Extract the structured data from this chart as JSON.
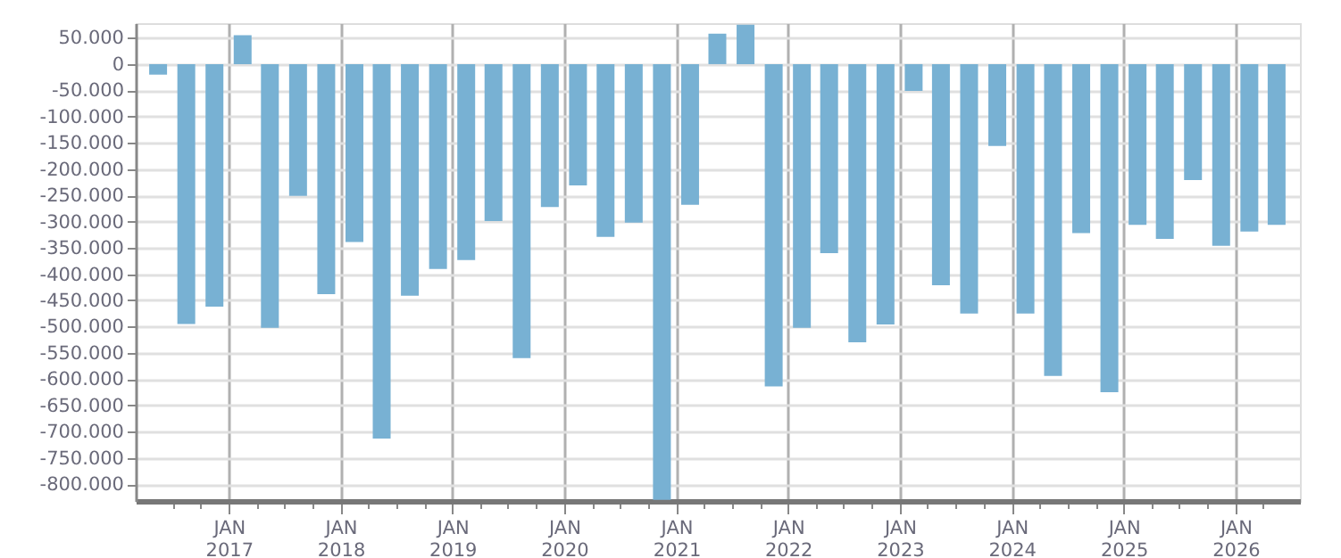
{
  "chart_data": {
    "type": "bar",
    "color": "#78b1d3",
    "grid": true,
    "x": [
      "2016-05-15",
      "2016-08-15",
      "2016-11-15",
      "2017-02-15",
      "2017-05-15",
      "2017-08-15",
      "2017-11-15",
      "2018-02-15",
      "2018-05-15",
      "2018-08-15",
      "2018-11-15",
      "2019-02-15",
      "2019-05-15",
      "2019-08-15",
      "2019-11-15",
      "2020-02-15",
      "2020-05-15",
      "2020-08-15",
      "2020-11-15",
      "2021-02-15",
      "2021-05-15",
      "2021-08-15",
      "2021-11-15",
      "2022-02-15",
      "2022-05-15",
      "2022-08-15",
      "2022-11-15",
      "2023-02-15",
      "2023-05-15",
      "2023-08-15",
      "2023-11-15",
      "2024-02-15",
      "2024-05-15",
      "2024-08-15",
      "2024-11-15",
      "2025-02-15",
      "2025-05-15",
      "2025-08-15",
      "2025-11-15",
      "2026-02-15",
      "2026-05-15"
    ],
    "values": [
      -20000,
      -495000,
      -462000,
      55000,
      -502000,
      -251000,
      -438000,
      -339000,
      -713000,
      -441000,
      -390000,
      -373000,
      -299000,
      -560000,
      -272000,
      -231000,
      -329000,
      -302000,
      -830000,
      -268000,
      58000,
      75000,
      -614000,
      -502000,
      -360000,
      -530000,
      -496000,
      -51000,
      -421000,
      -475000,
      -156000,
      -475000,
      -594000,
      -322000,
      -625000,
      -306000,
      -333000,
      -221000,
      -346000,
      -319000,
      -306000
    ],
    "xlim": [
      "2016-04-01",
      "2026-07-01"
    ],
    "xticks": [
      {
        "value": "2016-07-01",
        "label": null
      },
      {
        "value": "2016-10-01",
        "label": null
      },
      {
        "value": "2017-01-01",
        "label": "JAN\n2017"
      },
      {
        "value": "2017-04-01",
        "label": null
      },
      {
        "value": "2017-07-01",
        "label": null
      },
      {
        "value": "2017-10-01",
        "label": null
      },
      {
        "value": "2018-01-01",
        "label": "JAN\n2018"
      },
      {
        "value": "2018-04-01",
        "label": null
      },
      {
        "value": "2018-07-01",
        "label": null
      },
      {
        "value": "2018-10-01",
        "label": null
      },
      {
        "value": "2019-01-01",
        "label": "JAN\n2019"
      },
      {
        "value": "2019-04-01",
        "label": null
      },
      {
        "value": "2019-07-01",
        "label": null
      },
      {
        "value": "2019-10-01",
        "label": null
      },
      {
        "value": "2020-01-01",
        "label": "JAN\n2020"
      },
      {
        "value": "2020-04-01",
        "label": null
      },
      {
        "value": "2020-07-01",
        "label": null
      },
      {
        "value": "2020-10-01",
        "label": null
      },
      {
        "value": "2021-01-01",
        "label": "JAN\n2021"
      },
      {
        "value": "2021-04-01",
        "label": null
      },
      {
        "value": "2021-07-01",
        "label": null
      },
      {
        "value": "2021-10-01",
        "label": null
      },
      {
        "value": "2022-01-01",
        "label": "JAN\n2022"
      },
      {
        "value": "2022-04-01",
        "label": null
      },
      {
        "value": "2022-07-01",
        "label": null
      },
      {
        "value": "2022-10-01",
        "label": null
      },
      {
        "value": "2023-01-01",
        "label": "JAN\n2023"
      },
      {
        "value": "2023-04-01",
        "label": null
      },
      {
        "value": "2023-07-01",
        "label": null
      },
      {
        "value": "2023-10-01",
        "label": null
      },
      {
        "value": "2024-01-01",
        "label": "JAN\n2024"
      },
      {
        "value": "2024-04-01",
        "label": null
      },
      {
        "value": "2024-07-01",
        "label": null
      },
      {
        "value": "2024-10-01",
        "label": null
      },
      {
        "value": "2025-01-01",
        "label": "JAN\n2025"
      },
      {
        "value": "2025-04-01",
        "label": null
      },
      {
        "value": "2025-07-01",
        "label": null
      },
      {
        "value": "2025-10-01",
        "label": null
      },
      {
        "value": "2026-01-01",
        "label": "JAN\n2026"
      },
      {
        "value": "2026-04-01",
        "label": null
      }
    ],
    "ylim": [
      -832000,
      78000
    ],
    "yticks": [
      {
        "value": 50000,
        "label": "50.000"
      },
      {
        "value": 0,
        "label": "0"
      },
      {
        "value": -50000,
        "label": "-50.000"
      },
      {
        "value": -100000,
        "label": "-100.000"
      },
      {
        "value": -150000,
        "label": "-150.000"
      },
      {
        "value": -200000,
        "label": "-200.000"
      },
      {
        "value": -250000,
        "label": "-250.000"
      },
      {
        "value": -300000,
        "label": "-300.000"
      },
      {
        "value": -350000,
        "label": "-350.000"
      },
      {
        "value": -400000,
        "label": "-400.000"
      },
      {
        "value": -450000,
        "label": "-450.000"
      },
      {
        "value": -500000,
        "label": "-500.000"
      },
      {
        "value": -550000,
        "label": "-550.000"
      },
      {
        "value": -600000,
        "label": "-600.000"
      },
      {
        "value": -650000,
        "label": "-650.000"
      },
      {
        "value": -700000,
        "label": "-700.000"
      },
      {
        "value": -750000,
        "label": "-750.000"
      },
      {
        "value": -800000,
        "label": "-800.000"
      }
    ]
  }
}
